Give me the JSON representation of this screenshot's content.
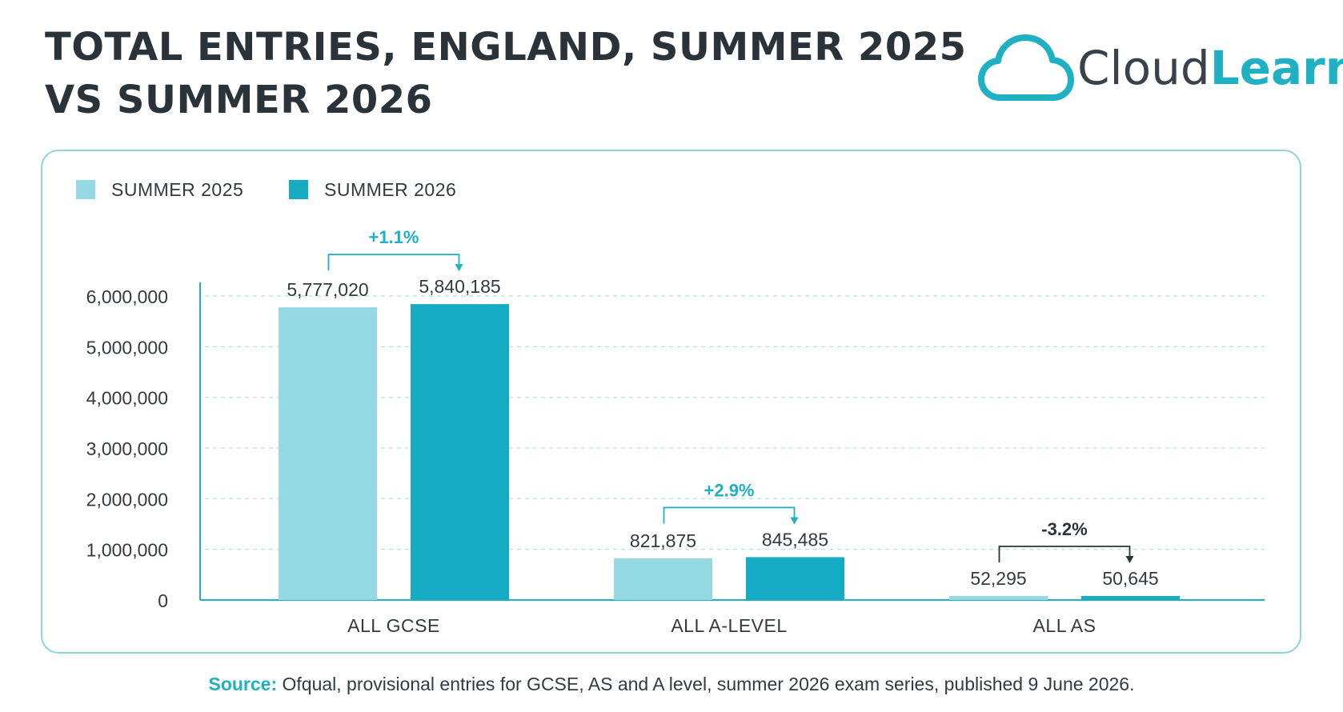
{
  "title": {
    "line1": "TOTAL ENTRIES, ENGLAND, SUMMER 2025",
    "line2": "VS SUMMER 2026"
  },
  "logo": {
    "text_a": "Cloud",
    "text_b": "Learn",
    "icon": "cloud-icon"
  },
  "colors": {
    "summer_2025": "#94d9e4",
    "summer_2026": "#14abc3",
    "accent": "#1fb0c4",
    "grid": "#bfe3ea",
    "axis": "#1fb0c4",
    "text": "#333a40",
    "negative_change": "#2b333a"
  },
  "chart_data": {
    "type": "bar",
    "title": "TOTAL ENTRIES, ENGLAND, SUMMER 2025 VS SUMMER 2026",
    "categories": [
      "ALL GCSE",
      "ALL A-LEVEL",
      "ALL AS"
    ],
    "series": [
      {
        "name": "SUMMER 2025",
        "values": [
          5777020,
          821875,
          52295
        ]
      },
      {
        "name": "SUMMER 2026",
        "values": [
          5840185,
          845485,
          50645
        ]
      }
    ],
    "value_labels": [
      [
        "5,777,020",
        "5,840,185"
      ],
      [
        "821,875",
        "845,485"
      ],
      [
        "52,295",
        "50,645"
      ]
    ],
    "changes": [
      "+1.1%",
      "+2.9%",
      "-3.2%"
    ],
    "ylim": [
      0,
      6000000
    ],
    "yticks": [
      0,
      1000000,
      2000000,
      3000000,
      4000000,
      5000000,
      6000000
    ],
    "ytick_labels": [
      "0",
      "1,000,000",
      "2,000,000",
      "3,000,000",
      "4,000,000",
      "5,000,000",
      "6,000,000"
    ],
    "xlabel": "",
    "ylabel": "",
    "grid": true,
    "legend_position": "top-left"
  },
  "source": {
    "label": "Source:",
    "text": " Ofqual, provisional entries for GCSE, AS and A level, summer 2026 exam series, published 9 June 2026."
  }
}
